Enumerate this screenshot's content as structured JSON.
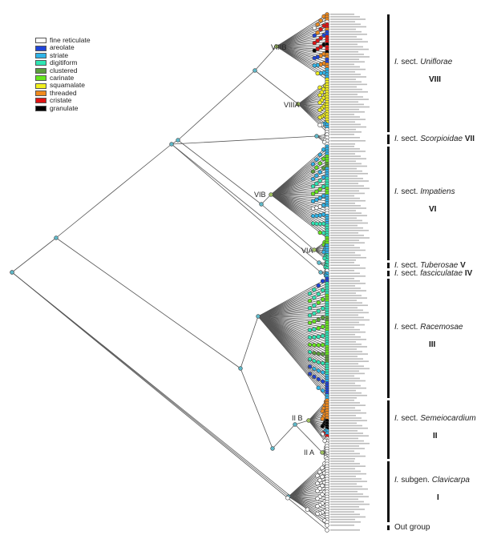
{
  "legend": [
    {
      "label": "fine reticulate",
      "color": "#ffffff"
    },
    {
      "label": "areolate",
      "color": "#1f44d8"
    },
    {
      "label": "striate",
      "color": "#2fb4e8"
    },
    {
      "label": "digitiform",
      "color": "#2fe6b4"
    },
    {
      "label": "clustered",
      "color": "#5c9e3c"
    },
    {
      "label": "carinate",
      "color": "#66e61e"
    },
    {
      "label": "squamalate",
      "color": "#f2f01e"
    },
    {
      "label": "threaded",
      "color": "#f08a1e"
    },
    {
      "label": "cristate",
      "color": "#e01414"
    },
    {
      "label": "granulate",
      "color": "#000000"
    }
  ],
  "sections": [
    {
      "id": "VIII",
      "prefix": "I.",
      "rank": "sect.",
      "name": "Uniflorae",
      "roman": "VIII",
      "tips": [
        [
          "threaded",
          3
        ],
        [
          "fine reticulate",
          1
        ],
        [
          "cristate",
          2
        ],
        [
          "threaded",
          1
        ],
        [
          "areolate",
          2
        ],
        [
          "cristate",
          3
        ],
        [
          "granulate",
          1
        ],
        [
          "cristate",
          2
        ],
        [
          "granulate",
          1
        ],
        [
          "threaded",
          2
        ],
        [
          "areolate",
          2
        ],
        [
          "threaded",
          2
        ],
        [
          "striate",
          4
        ],
        [
          "squamalate",
          18
        ],
        [
          "striate",
          2
        ],
        [
          "fine reticulate",
          2
        ]
      ]
    },
    {
      "id": "VII",
      "prefix": "I.",
      "rank": "sect.",
      "name": "Scorpioidae",
      "roman": "VII",
      "tips": [
        [
          "fine reticulate",
          4
        ]
      ]
    },
    {
      "id": "VI",
      "prefix": "I.",
      "rank": "sect.",
      "name": "Impatiens",
      "roman": "VI",
      "tips": [
        [
          "striate",
          4
        ],
        [
          "carinate",
          3
        ],
        [
          "clustered",
          2
        ],
        [
          "striate",
          4
        ],
        [
          "digitiform",
          4
        ],
        [
          "carinate",
          3
        ],
        [
          "striate",
          5
        ],
        [
          "fine reticulate",
          3
        ],
        [
          "striate",
          4
        ],
        [
          "digitiform",
          5
        ],
        [
          "carinate",
          3
        ],
        [
          "striate",
          4
        ],
        [
          "digitiform",
          3
        ]
      ]
    },
    {
      "id": "V",
      "prefix": "I.",
      "rank": "sect.",
      "name": "Tuberosae",
      "roman": "V",
      "tips": [
        [
          "digitiform",
          3
        ]
      ]
    },
    {
      "id": "IV",
      "prefix": "I.",
      "rank": "sect.",
      "name": "fasciculatae",
      "roman": "IV",
      "tips": [
        [
          "fine reticulate",
          1
        ],
        [
          "striate",
          2
        ]
      ]
    },
    {
      "id": "III",
      "prefix": "I.",
      "rank": "sect.",
      "name": "Racemosae",
      "roman": "III",
      "tips": [
        [
          "areolate",
          2
        ],
        [
          "digitiform",
          5
        ],
        [
          "carinate",
          3
        ],
        [
          "digitiform",
          6
        ],
        [
          "clustered",
          2
        ],
        [
          "carinate",
          4
        ],
        [
          "digitiform",
          6
        ],
        [
          "carinate",
          4
        ],
        [
          "clustered",
          3
        ],
        [
          "digitiform",
          5
        ],
        [
          "striate",
          3
        ],
        [
          "areolate",
          5
        ],
        [
          "striate",
          2
        ]
      ]
    },
    {
      "id": "II",
      "prefix": "I.",
      "rank": "sect.",
      "name": "Semeiocardium",
      "roman": "II",
      "tips": [
        [
          "threaded",
          8
        ],
        [
          "granulate",
          4
        ],
        [
          "striate",
          2
        ],
        [
          "cristate",
          1
        ],
        [
          "fine reticulate",
          9
        ]
      ]
    },
    {
      "id": "I",
      "prefix": "I.",
      "rank": "subgen.",
      "name": "Clavicarpa",
      "roman": "I",
      "tips": [
        [
          "fine reticulate",
          25
        ]
      ]
    },
    {
      "id": "OUT",
      "label": "Out group",
      "tips": [
        [
          "fine reticulate",
          2
        ]
      ]
    }
  ],
  "node_labels": {
    "VIIIB": "VIIIB",
    "VIIIA": "VIIIA",
    "VIB": "VIB",
    "VIA": "VIA",
    "IIB": "II B",
    "IIA": "II A"
  },
  "tree_line_color": "#555555"
}
